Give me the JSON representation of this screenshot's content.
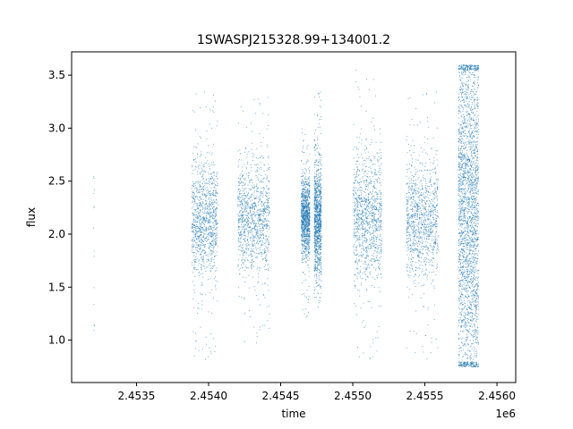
{
  "chart_data": {
    "type": "scatter",
    "title": "1SWASPJ215328.99+134001.2",
    "xlabel": "time",
    "ylabel": "flux",
    "x_offset_label": "1e6",
    "xlim": [
      2453050,
      2456130
    ],
    "ylim": [
      0.6,
      3.72
    ],
    "xticks": [
      2453500,
      2454000,
      2454500,
      2455000,
      2455500,
      2456000
    ],
    "xtick_labels": [
      "2.4535",
      "2.4540",
      "2.4545",
      "2.4550",
      "2.4555",
      "2.4560"
    ],
    "yticks": [
      1.0,
      1.5,
      2.0,
      2.5,
      3.0,
      3.5
    ],
    "ytick_labels": [
      "1.0",
      "1.5",
      "2.0",
      "2.5",
      "3.0",
      "3.5"
    ],
    "grid": false,
    "marker_color": "#1f77b4",
    "series": [
      {
        "clusters": [
          {
            "x_range": [
              2453200,
              2453205
            ],
            "y_center": 2.1,
            "y_spread": [
              1.05,
              2.55
            ],
            "density": "sparse"
          },
          {
            "x_range": [
              2453880,
              2454060
            ],
            "y_center": 2.15,
            "y_spread": [
              0.77,
              3.38
            ],
            "density": "dense"
          },
          {
            "x_range": [
              2454200,
              2454420
            ],
            "y_center": 2.15,
            "y_spread": [
              0.95,
              3.3
            ],
            "density": "dense"
          },
          {
            "x_range": [
              2454640,
              2454700
            ],
            "y_center": 2.15,
            "y_spread": [
              1.2,
              3.0
            ],
            "density": "dense"
          },
          {
            "x_range": [
              2454730,
              2454780
            ],
            "y_center": 2.15,
            "y_spread": [
              1.3,
              3.35
            ],
            "density": "dense"
          },
          {
            "x_range": [
              2455000,
              2455200
            ],
            "y_center": 2.15,
            "y_spread": [
              0.8,
              3.55
            ],
            "density": "dense"
          },
          {
            "x_range": [
              2455370,
              2455590
            ],
            "y_center": 2.15,
            "y_spread": [
              0.75,
              3.35
            ],
            "density": "dense"
          },
          {
            "x_range": [
              2455730,
              2455870
            ],
            "y_center": 2.2,
            "y_spread": [
              0.75,
              3.6
            ],
            "density": "very-dense"
          }
        ]
      }
    ]
  }
}
